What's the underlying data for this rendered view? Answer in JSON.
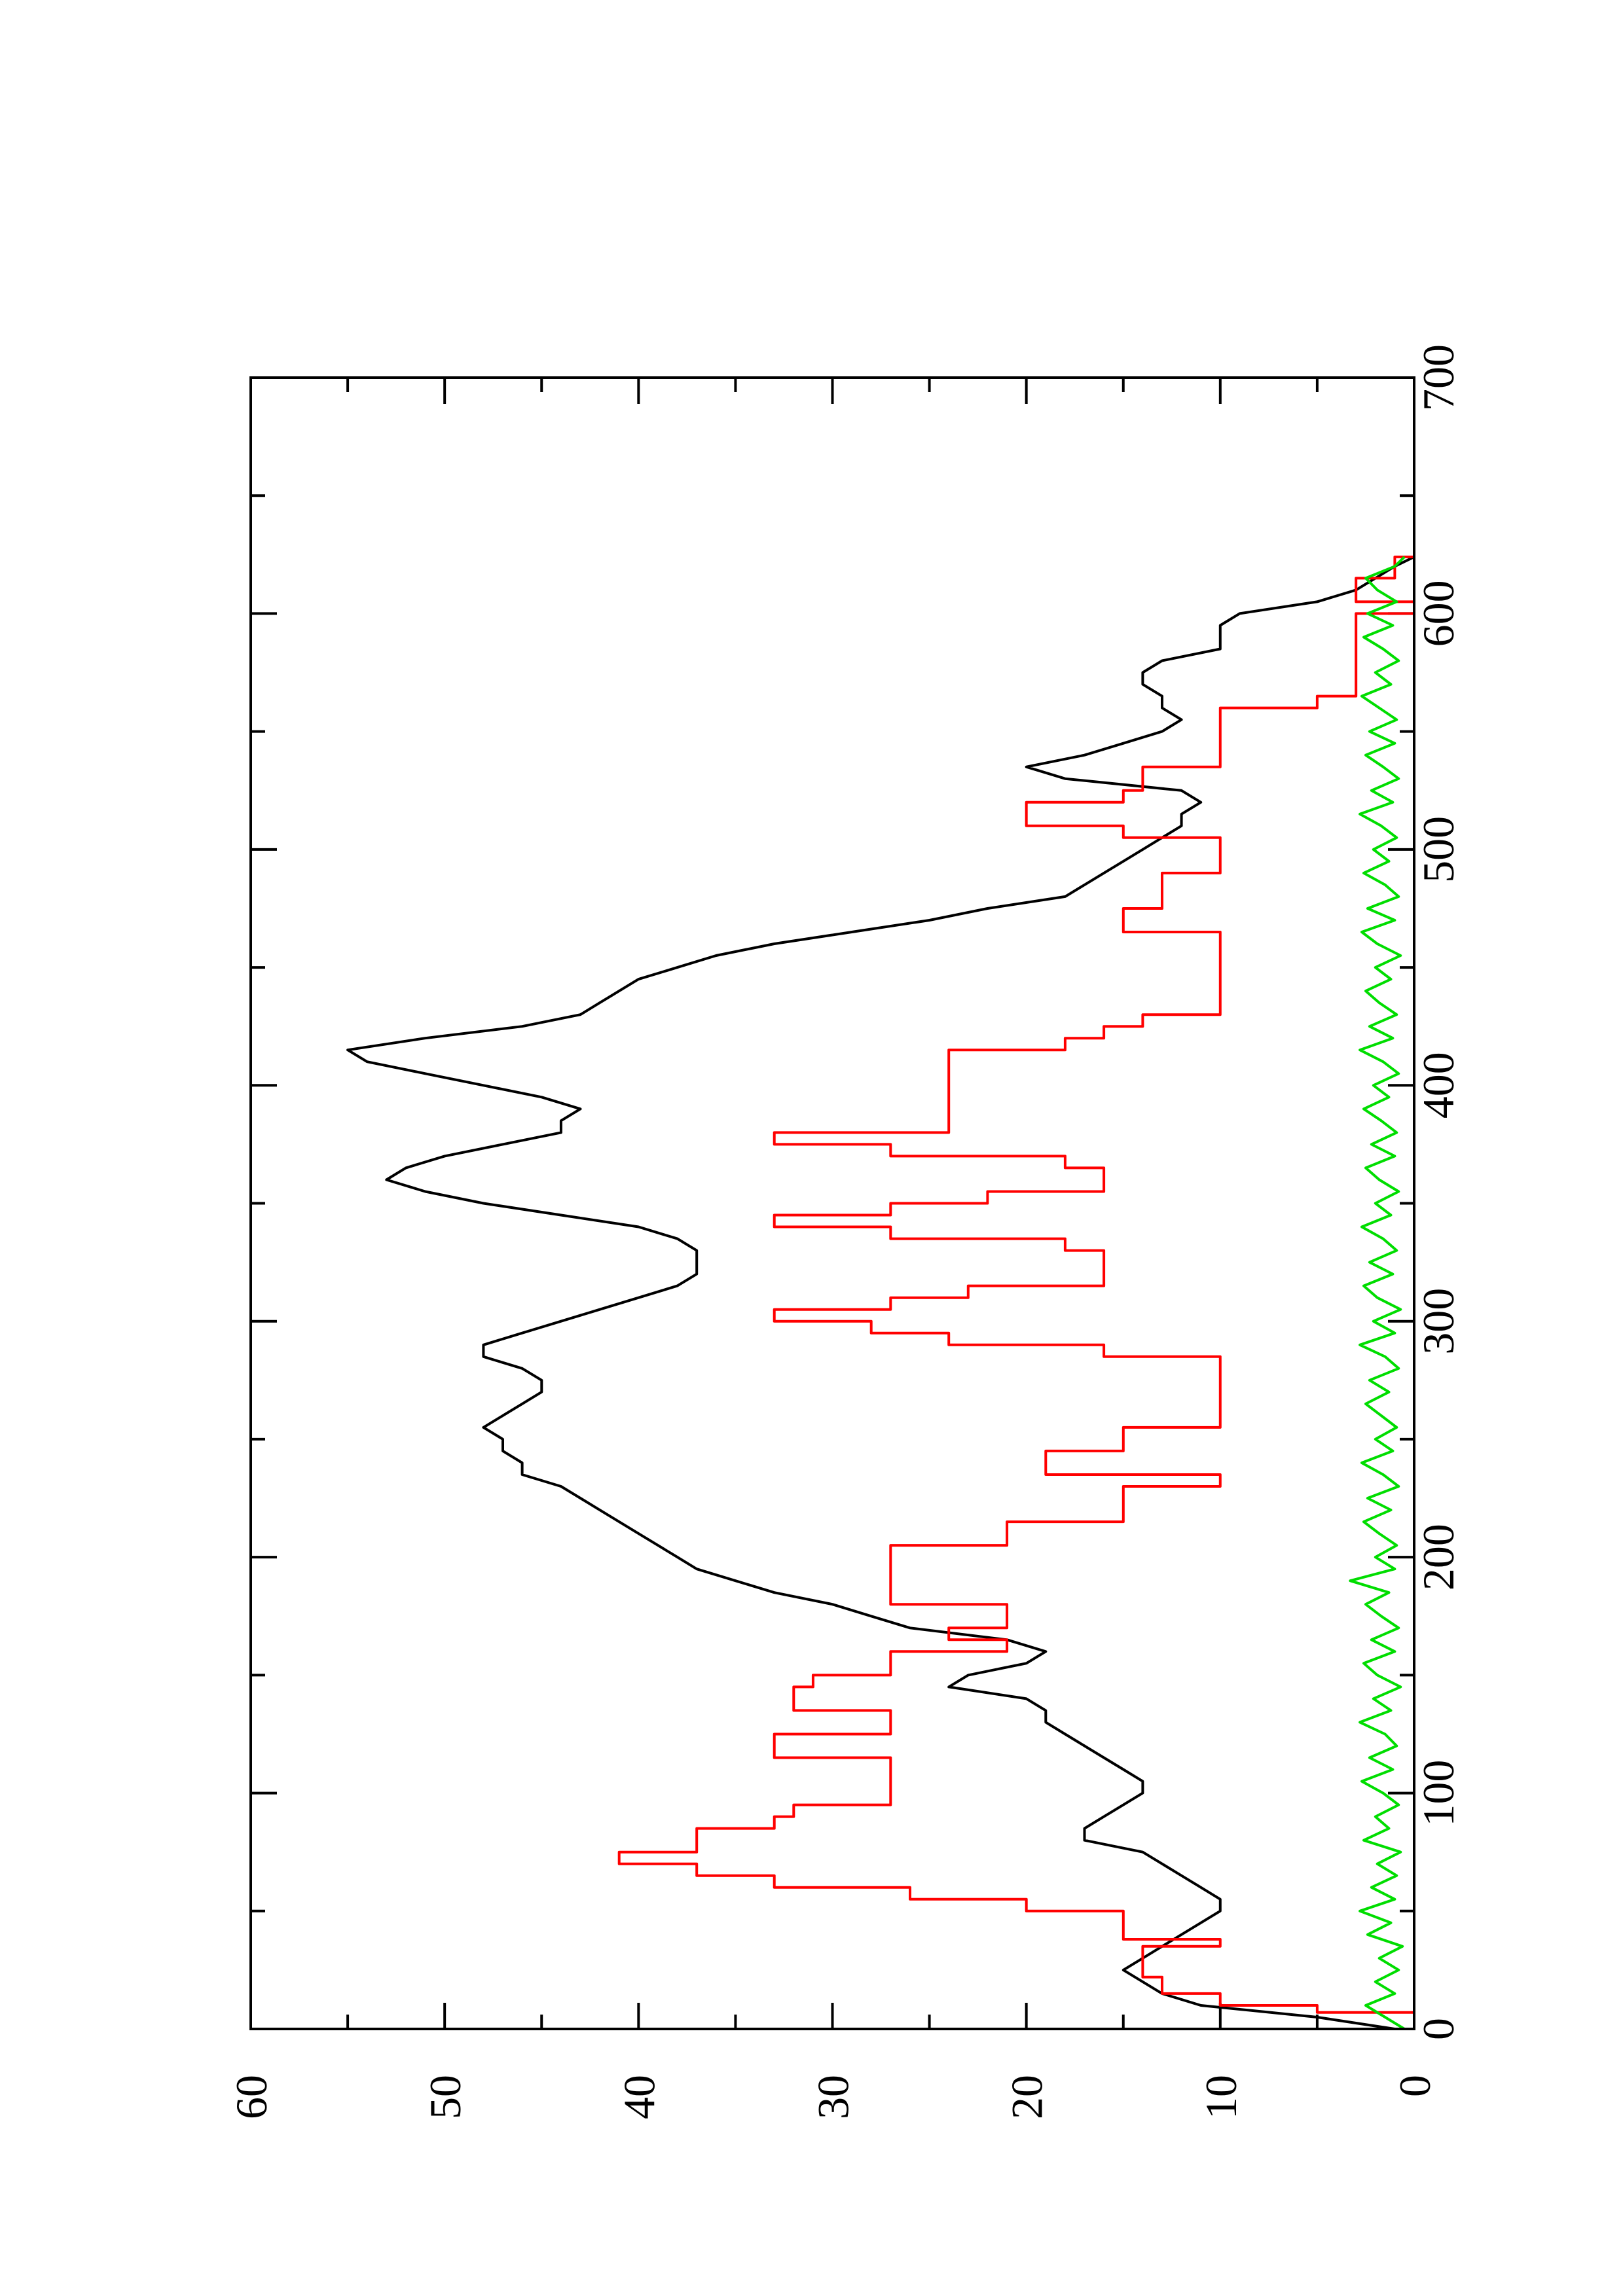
{
  "chart_data": {
    "type": "line",
    "orientation": "rotated-90-ccw",
    "title": "",
    "xlabel": "",
    "ylabel": "",
    "xlim": [
      0,
      700
    ],
    "ylim": [
      0,
      60
    ],
    "x_ticks_major": [
      0,
      100,
      200,
      300,
      400,
      500,
      600,
      700
    ],
    "x_ticks_minor": [
      50,
      150,
      250,
      350,
      450,
      550,
      650
    ],
    "y_ticks_major": [
      0,
      10,
      20,
      30,
      40,
      50,
      60
    ],
    "y_ticks_minor": [
      5,
      15,
      25,
      35,
      45,
      55
    ],
    "x_tick_labels": [
      "0",
      "100",
      "200",
      "300",
      "400",
      "500",
      "600",
      "700"
    ],
    "y_tick_labels": [
      "0",
      "10",
      "20",
      "30",
      "40",
      "50",
      "60"
    ],
    "grid": false,
    "legend": "none",
    "colors": {
      "black": "#000000",
      "red": "#ff0000",
      "green": "#00dd00"
    },
    "series": [
      {
        "color": "#000000",
        "style": "line",
        "x": [
          0,
          5,
          10,
          15,
          20,
          25,
          30,
          35,
          40,
          45,
          50,
          55,
          60,
          65,
          70,
          75,
          80,
          85,
          90,
          95,
          100,
          105,
          110,
          115,
          120,
          125,
          130,
          135,
          140,
          145,
          150,
          155,
          160,
          165,
          170,
          175,
          180,
          185,
          190,
          195,
          200,
          205,
          210,
          215,
          220,
          225,
          230,
          235,
          240,
          245,
          250,
          255,
          260,
          265,
          270,
          275,
          280,
          285,
          290,
          295,
          300,
          305,
          310,
          315,
          320,
          325,
          330,
          335,
          340,
          345,
          350,
          355,
          360,
          365,
          370,
          375,
          380,
          385,
          390,
          395,
          400,
          405,
          410,
          415,
          420,
          425,
          430,
          435,
          440,
          445,
          450,
          455,
          460,
          465,
          470,
          475,
          480,
          485,
          490,
          495,
          500,
          505,
          510,
          515,
          520,
          525,
          530,
          535,
          540,
          545,
          550,
          555,
          560,
          565,
          570,
          575,
          580,
          585,
          590,
          595,
          600,
          605,
          610,
          615,
          620,
          624
        ],
        "y": [
          1,
          5,
          11,
          13,
          14,
          15,
          14,
          13,
          12,
          11,
          10,
          10,
          11,
          12,
          13,
          14,
          17,
          17,
          16,
          15,
          14,
          14,
          15,
          16,
          17,
          18,
          19,
          19,
          20,
          24,
          23,
          20,
          19,
          21,
          26,
          28,
          30,
          33,
          35,
          37,
          38,
          39,
          40,
          41,
          42,
          43,
          44,
          46,
          46,
          47,
          47,
          48,
          47,
          46,
          45,
          45,
          46,
          48,
          48,
          46,
          44,
          42,
          40,
          38,
          37,
          37,
          37,
          38,
          40,
          44,
          48,
          51,
          53,
          52,
          50,
          47,
          44,
          44,
          43,
          45,
          48,
          51,
          54,
          55,
          51,
          46,
          43,
          42,
          41,
          40,
          38,
          36,
          33,
          29,
          25,
          22,
          18,
          17,
          16,
          15,
          14,
          13,
          12,
          12,
          11,
          12,
          18,
          20,
          17,
          15,
          13,
          12,
          13,
          13,
          14,
          14,
          13,
          10,
          10,
          10,
          9,
          5,
          3,
          2,
          1,
          0
        ]
      },
      {
        "color": "#ff0000",
        "style": "step",
        "x": [
          0,
          7,
          10,
          15,
          22,
          25,
          35,
          38,
          40,
          45,
          50,
          55,
          60,
          65,
          70,
          75,
          80,
          85,
          90,
          95,
          100,
          105,
          110,
          115,
          120,
          125,
          130,
          135,
          140,
          145,
          150,
          155,
          160,
          165,
          170,
          175,
          180,
          185,
          190,
          195,
          200,
          205,
          210,
          215,
          220,
          225,
          230,
          235,
          240,
          245,
          250,
          255,
          260,
          265,
          270,
          275,
          280,
          285,
          290,
          295,
          300,
          305,
          310,
          315,
          320,
          325,
          330,
          335,
          340,
          345,
          350,
          355,
          360,
          365,
          370,
          375,
          380,
          385,
          390,
          395,
          400,
          405,
          410,
          415,
          420,
          425,
          430,
          435,
          440,
          445,
          450,
          455,
          460,
          465,
          470,
          475,
          480,
          485,
          490,
          495,
          500,
          505,
          510,
          515,
          520,
          525,
          530,
          535,
          540,
          545,
          550,
          555,
          560,
          565,
          570,
          575,
          580,
          585,
          590,
          595,
          600,
          605,
          610,
          615,
          620,
          624
        ],
        "y": [
          0,
          5,
          10,
          13,
          14,
          14,
          10,
          15,
          15,
          15,
          20,
          26,
          33,
          37,
          41,
          37,
          37,
          33,
          32,
          27,
          27,
          27,
          27,
          33,
          33,
          27,
          27,
          32,
          32,
          31,
          27,
          27,
          21,
          24,
          21,
          21,
          27,
          27,
          27,
          27,
          27,
          21,
          21,
          15,
          15,
          15,
          10,
          19,
          19,
          15,
          15,
          10,
          10,
          10,
          10,
          10,
          10,
          16,
          24,
          28,
          33,
          27,
          23,
          16,
          16,
          16,
          18,
          27,
          33,
          27,
          22,
          16,
          16,
          18,
          27,
          33,
          24,
          24,
          24,
          24,
          24,
          24,
          24,
          18,
          16,
          14,
          10,
          10,
          10,
          10,
          10,
          10,
          10,
          15,
          15,
          13,
          13,
          13,
          10,
          10,
          10,
          15,
          20,
          20,
          15,
          14,
          14,
          10,
          10,
          10,
          10,
          10,
          5,
          3,
          3,
          3,
          3,
          3,
          3,
          3,
          0,
          3,
          3,
          1,
          1,
          0
        ]
      },
      {
        "color": "#00dd00",
        "style": "line",
        "x": [
          0,
          5,
          10,
          15,
          20,
          25,
          30,
          35,
          40,
          45,
          50,
          55,
          60,
          65,
          70,
          75,
          80,
          85,
          90,
          95,
          100,
          105,
          110,
          115,
          120,
          125,
          130,
          135,
          140,
          145,
          150,
          155,
          160,
          165,
          170,
          175,
          180,
          185,
          190,
          195,
          200,
          205,
          210,
          215,
          220,
          225,
          230,
          235,
          240,
          245,
          250,
          255,
          260,
          265,
          270,
          275,
          280,
          285,
          290,
          295,
          300,
          305,
          310,
          315,
          320,
          325,
          330,
          335,
          340,
          345,
          350,
          355,
          360,
          365,
          370,
          375,
          380,
          385,
          390,
          395,
          400,
          405,
          410,
          415,
          420,
          425,
          430,
          435,
          440,
          445,
          450,
          455,
          460,
          465,
          470,
          475,
          480,
          485,
          490,
          495,
          500,
          505,
          510,
          515,
          520,
          525,
          530,
          535,
          540,
          545,
          550,
          555,
          560,
          565,
          570,
          575,
          580,
          585,
          590,
          595,
          600,
          605,
          610,
          615,
          620,
          624
        ],
        "y": [
          0.5,
          1.5,
          2.5,
          1.0,
          2.0,
          0.8,
          1.8,
          0.6,
          2.4,
          1.2,
          2.8,
          1.0,
          2.2,
          0.9,
          1.9,
          0.7,
          2.6,
          1.3,
          2.0,
          0.8,
          1.6,
          2.7,
          1.1,
          2.3,
          0.9,
          1.5,
          2.8,
          1.2,
          2.1,
          0.7,
          1.9,
          2.6,
          1.0,
          2.2,
          0.8,
          1.7,
          2.5,
          1.3,
          3.3,
          1.0,
          2.0,
          0.9,
          1.8,
          2.6,
          1.2,
          2.4,
          0.8,
          1.6,
          2.7,
          1.1,
          2.0,
          0.9,
          1.7,
          2.5,
          1.3,
          2.3,
          0.8,
          1.5,
          2.8,
          1.0,
          2.1,
          0.7,
          1.9,
          2.6,
          1.1,
          2.3,
          0.9,
          1.6,
          2.7,
          1.2,
          2.0,
          0.8,
          1.8,
          2.5,
          1.0,
          2.2,
          0.9,
          1.7,
          2.6,
          1.3,
          2.1,
          0.8,
          1.6,
          2.8,
          1.1,
          2.3,
          0.9,
          1.8,
          2.5,
          1.2,
          2.0,
          0.7,
          1.9,
          2.7,
          1.0,
          2.4,
          0.8,
          1.5,
          2.6,
          1.3,
          2.1,
          0.9,
          1.7,
          2.8,
          1.1,
          2.2,
          0.8,
          1.6,
          2.5,
          1.0,
          2.3,
          0.9,
          1.8,
          2.7,
          1.2,
          2.0,
          0.8,
          1.6,
          2.6,
          1.1,
          2.4,
          0.9,
          1.9,
          2.5,
          1.0,
          0.5
        ]
      }
    ]
  }
}
